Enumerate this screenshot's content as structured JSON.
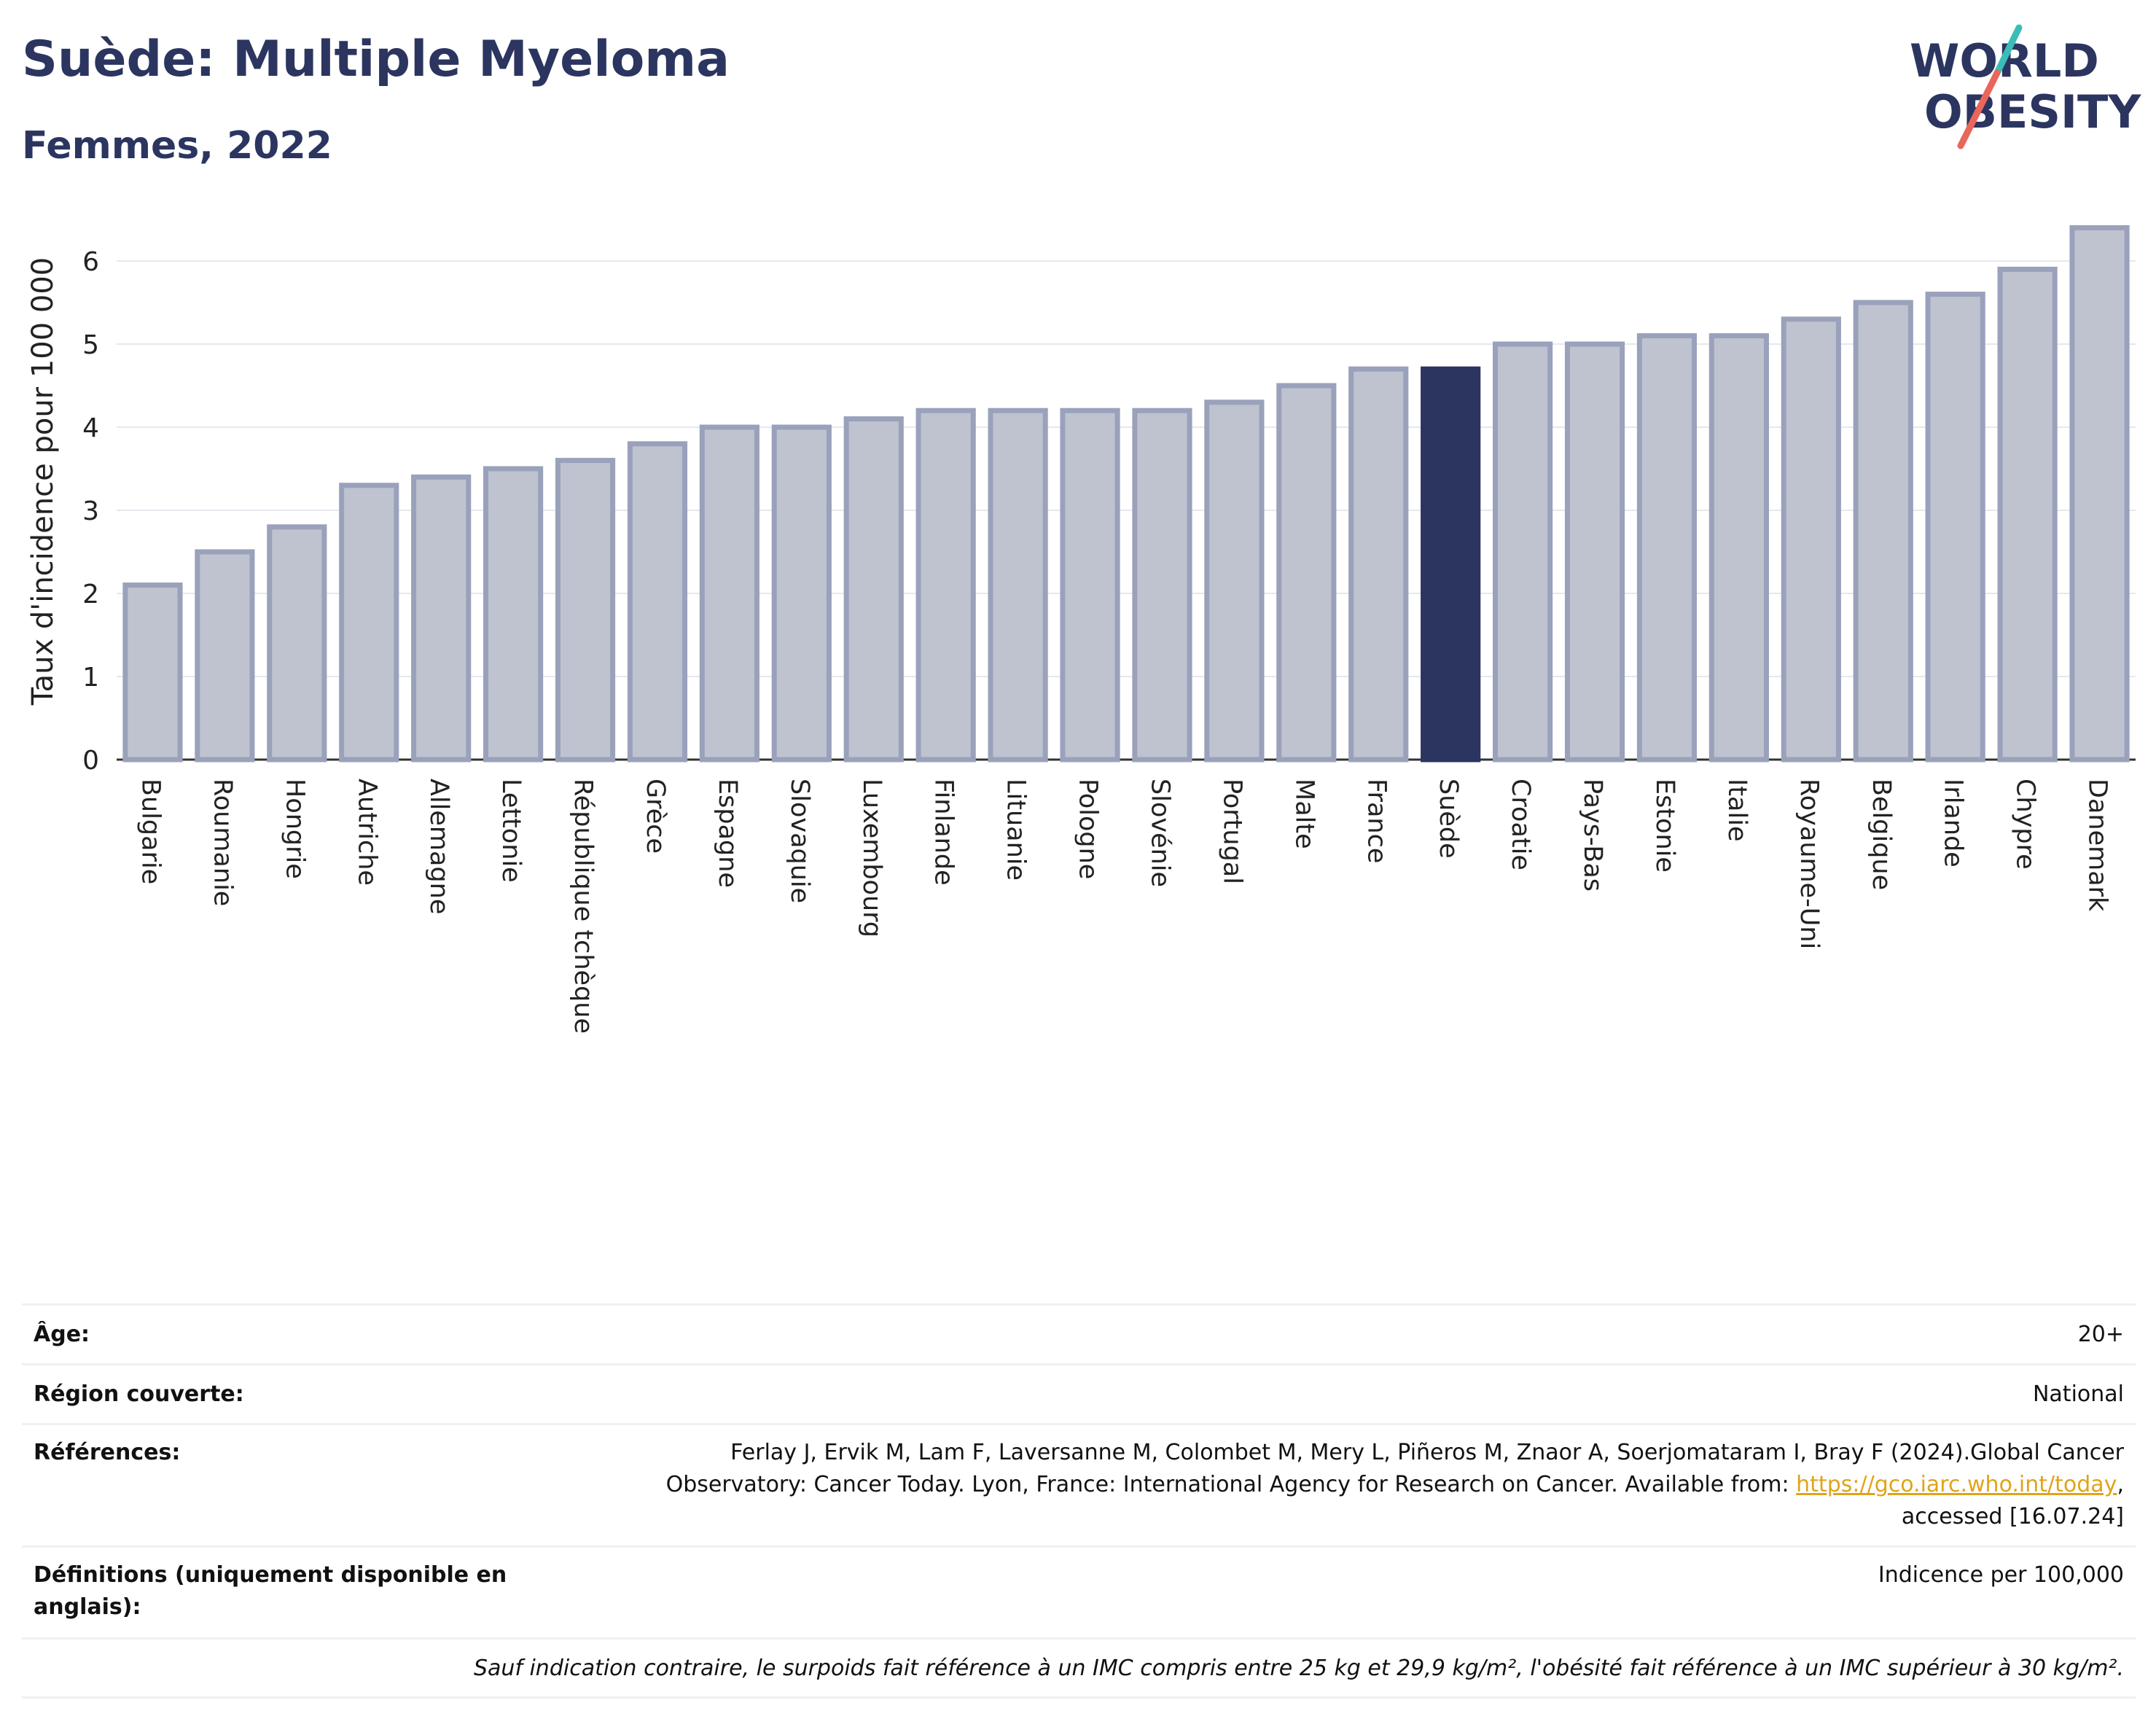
{
  "header": {
    "title": "Suède: Multiple Myeloma",
    "subtitle": "Femmes, 2022"
  },
  "logo": {
    "line1": "WORLD",
    "line2": "OBESITY"
  },
  "colors": {
    "bar": "#bfc3cf",
    "bar_border": "#9aa1bb",
    "highlight": "#2b3560",
    "title": "#2b3560",
    "link": "#e0a419"
  },
  "chart_data": {
    "type": "bar",
    "ylabel": "Taux d'incidence pour 100 000",
    "ylim": [
      0,
      6.5
    ],
    "yticks": [
      0,
      1,
      2,
      3,
      4,
      5,
      6
    ],
    "grid": true,
    "highlight": "Suède",
    "categories": [
      "Bulgarie",
      "Roumanie",
      "Hongrie",
      "Autriche",
      "Allemagne",
      "Lettonie",
      "République tchèque",
      "Grèce",
      "Espagne",
      "Slovaquie",
      "Luxembourg",
      "Finlande",
      "Lituanie",
      "Pologne",
      "Slovénie",
      "Portugal",
      "Malte",
      "France",
      "Suède",
      "Croatie",
      "Pays-Bas",
      "Estonie",
      "Italie",
      "Royaume-Uni",
      "Belgique",
      "Irlande",
      "Chypre",
      "Danemark"
    ],
    "values": [
      2.1,
      2.5,
      2.8,
      3.3,
      3.4,
      3.5,
      3.6,
      3.8,
      4.0,
      4.0,
      4.1,
      4.2,
      4.2,
      4.2,
      4.2,
      4.3,
      4.5,
      4.7,
      4.7,
      5.0,
      5.0,
      5.1,
      5.1,
      5.3,
      5.5,
      5.6,
      5.9,
      6.4
    ]
  },
  "info": {
    "age_label": "Âge:",
    "age_value": "20+",
    "region_label": "Région couverte:",
    "region_value": "National",
    "refs_label": "Références:",
    "refs_text_1": "Ferlay J, Ervik M, Lam F, Laversanne M, Colombet M, Mery L, Piñeros M, Znaor A, Soerjomataram I, Bray F (2024).Global Cancer",
    "refs_text_2": "Observatory: Cancer Today. Lyon, France: International Agency for Research on Cancer. Available from: ",
    "refs_link": "https://gco.iarc.who.int/today",
    "refs_text_3": "accessed [16.07.24]",
    "defs_label": "Définitions (uniquement disponible en anglais):",
    "defs_value": "Indicence per 100,000",
    "note": "Sauf indication contraire, le surpoids fait référence à un IMC compris entre 25 kg et 29,9 kg/m², l'obésité fait référence à un IMC supérieur à 30 kg/m²."
  }
}
